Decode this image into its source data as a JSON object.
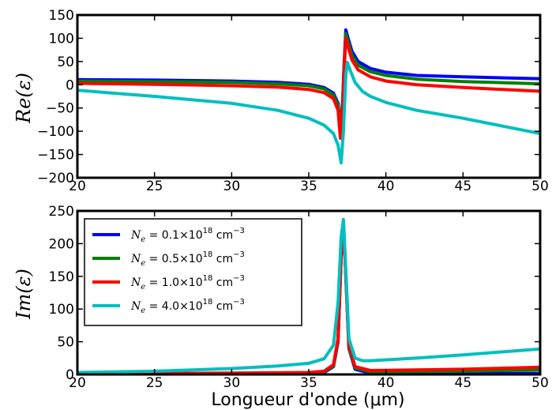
{
  "chart_data": [
    {
      "type": "line",
      "xlabel": "",
      "ylabel": "Re(ε)",
      "xlim": [
        20,
        50
      ],
      "ylim": [
        -200,
        150
      ],
      "xticks": [
        "20",
        "25",
        "30",
        "35",
        "40",
        "45",
        "50"
      ],
      "yticks": [
        "−200",
        "−150",
        "−100",
        "−50",
        "0",
        "50",
        "100",
        "150"
      ],
      "grid": false,
      "series": [
        {
          "name": "N_e = 0.1×10^18 cm^-3",
          "color": "#0000ff",
          "x": [
            20,
            25,
            30,
            33,
            35,
            36,
            36.6,
            36.9,
            37.05,
            37.2,
            37.3,
            37.4,
            37.55,
            37.8,
            38.2,
            39,
            40,
            42,
            45,
            50
          ],
          "y": [
            11,
            10,
            8,
            5,
            1,
            -6,
            -18,
            -40,
            -100,
            -30,
            50,
            118,
            100,
            72,
            50,
            35,
            27,
            20,
            17,
            13
          ]
        },
        {
          "name": "N_e = 0.5×10^18 cm^-3",
          "color": "#008000",
          "x": [
            20,
            25,
            30,
            33,
            35,
            36,
            36.6,
            36.9,
            37.05,
            37.2,
            37.3,
            37.4,
            37.55,
            37.8,
            38.2,
            39,
            40,
            42,
            45,
            50
          ],
          "y": [
            8,
            7,
            5,
            2,
            -2,
            -9,
            -22,
            -45,
            -105,
            -32,
            45,
            110,
            92,
            63,
            42,
            28,
            20,
            12,
            7,
            2
          ]
        },
        {
          "name": "N_e = 1.0×10^18 cm^-3",
          "color": "#ff0000",
          "x": [
            20,
            25,
            30,
            33,
            35,
            36,
            36.6,
            36.9,
            37.05,
            37.2,
            37.3,
            37.4,
            37.55,
            37.8,
            38.2,
            39,
            40,
            42,
            45,
            50
          ],
          "y": [
            3,
            1,
            -2,
            -5,
            -10,
            -17,
            -30,
            -55,
            -115,
            -40,
            35,
            100,
            82,
            53,
            32,
            17,
            8,
            0,
            -6,
            -14
          ]
        },
        {
          "name": "N_e = 4.0×10^18 cm^-3",
          "color": "#00bfbf",
          "x": [
            20,
            25,
            30,
            33,
            35,
            36,
            36.6,
            36.9,
            37.1,
            37.25,
            37.4,
            37.5,
            37.7,
            38,
            38.5,
            39,
            40,
            42,
            45,
            50
          ],
          "y": [
            -12,
            -25,
            -40,
            -55,
            -72,
            -87,
            -105,
            -130,
            -168,
            -100,
            20,
            48,
            30,
            5,
            -15,
            -25,
            -38,
            -55,
            -72,
            -105
          ]
        }
      ]
    },
    {
      "type": "line",
      "xlabel": "Longueur d'onde (μm)",
      "ylabel": "Im(ε)",
      "xlim": [
        20,
        50
      ],
      "ylim": [
        0,
        250
      ],
      "xticks": [
        "20",
        "25",
        "30",
        "35",
        "40",
        "45",
        "50"
      ],
      "yticks": [
        "0",
        "50",
        "100",
        "150",
        "200",
        "250"
      ],
      "grid": false,
      "legend_position": "upper-left",
      "series": [
        {
          "name": "N_e = 0.1×10^18 cm^-3",
          "color": "#0000ff",
          "x": [
            20,
            30,
            35,
            36,
            36.6,
            36.9,
            37.1,
            37.25,
            37.4,
            37.6,
            38,
            39,
            45,
            50
          ],
          "y": [
            0.3,
            0.5,
            1,
            3,
            12,
            50,
            180,
            230,
            150,
            40,
            8,
            2,
            1.5,
            1.5
          ]
        },
        {
          "name": "N_e = 0.5×10^18 cm^-3",
          "color": "#008000",
          "x": [
            20,
            30,
            35,
            36,
            36.6,
            36.9,
            37.1,
            37.25,
            37.4,
            37.6,
            38,
            39,
            45,
            50
          ],
          "y": [
            0.5,
            1,
            2,
            4,
            13,
            52,
            180,
            232,
            152,
            42,
            10,
            4,
            5,
            7
          ]
        },
        {
          "name": "N_e = 1.0×10^18 cm^-3",
          "color": "#ff0000",
          "x": [
            20,
            30,
            35,
            36,
            36.6,
            36.9,
            37.1,
            37.25,
            37.4,
            37.6,
            38,
            39,
            45,
            50
          ],
          "y": [
            1,
            2,
            3,
            5,
            15,
            55,
            182,
            233,
            154,
            45,
            12,
            6,
            8,
            11
          ]
        },
        {
          "name": "N_e = 4.0×10^18 cm^-3",
          "color": "#00bfbf",
          "x": [
            20,
            25,
            30,
            33,
            35,
            36,
            36.6,
            36.9,
            37.1,
            37.25,
            37.4,
            37.6,
            38,
            38.5,
            39,
            42,
            45,
            50
          ],
          "y": [
            3,
            5,
            9,
            13,
            17,
            24,
            45,
            110,
            210,
            237,
            160,
            55,
            25,
            21,
            21,
            25,
            30,
            39
          ]
        }
      ]
    }
  ],
  "legend": [
    {
      "sym": "N",
      "sub": "e",
      "val": " = 0.1×10",
      "exp": "18",
      "unit": " cm",
      "uexp": "−3",
      "color": "#0000ff"
    },
    {
      "sym": "N",
      "sub": "e",
      "val": " = 0.5×10",
      "exp": "18",
      "unit": " cm",
      "uexp": "−3",
      "color": "#008000"
    },
    {
      "sym": "N",
      "sub": "e",
      "val": " = 1.0×10",
      "exp": "18",
      "unit": " cm",
      "uexp": "−3",
      "color": "#ff0000"
    },
    {
      "sym": "N",
      "sub": "e",
      "val": " = 4.0×10",
      "exp": "18",
      "unit": " cm",
      "uexp": "−3",
      "color": "#00bfbf"
    }
  ]
}
